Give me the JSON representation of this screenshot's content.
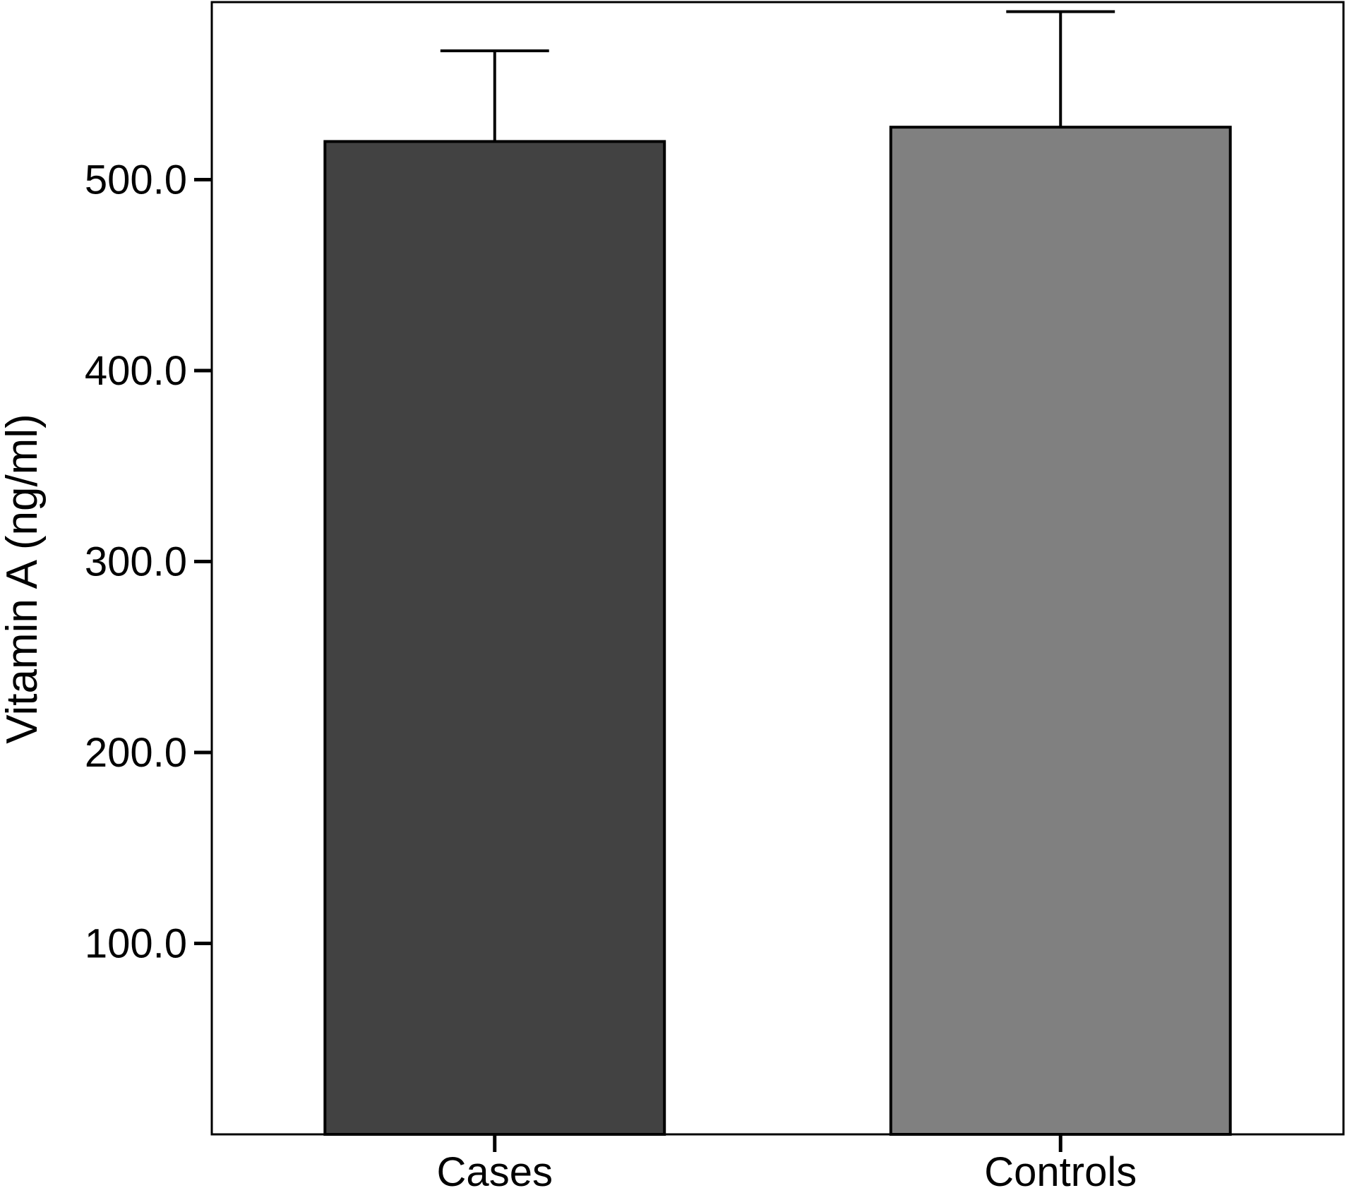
{
  "chart_data": {
    "type": "bar",
    "title": "",
    "xlabel": "",
    "ylabel": "Vitamin A (ng/ml)",
    "categories": [
      "Cases",
      "Controls"
    ],
    "values": [
      520.0,
      527.5
    ],
    "error_upper": [
      567.5,
      588.0
    ],
    "colors": [
      "#424242",
      "#808080"
    ],
    "ylim": [
      0,
      593
    ],
    "yticks": [
      100,
      200,
      300,
      400,
      500
    ],
    "ytick_labels": [
      "100.0",
      "200.0",
      "300.0",
      "400.0",
      "500.0"
    ],
    "grid": false,
    "legend": "none"
  }
}
